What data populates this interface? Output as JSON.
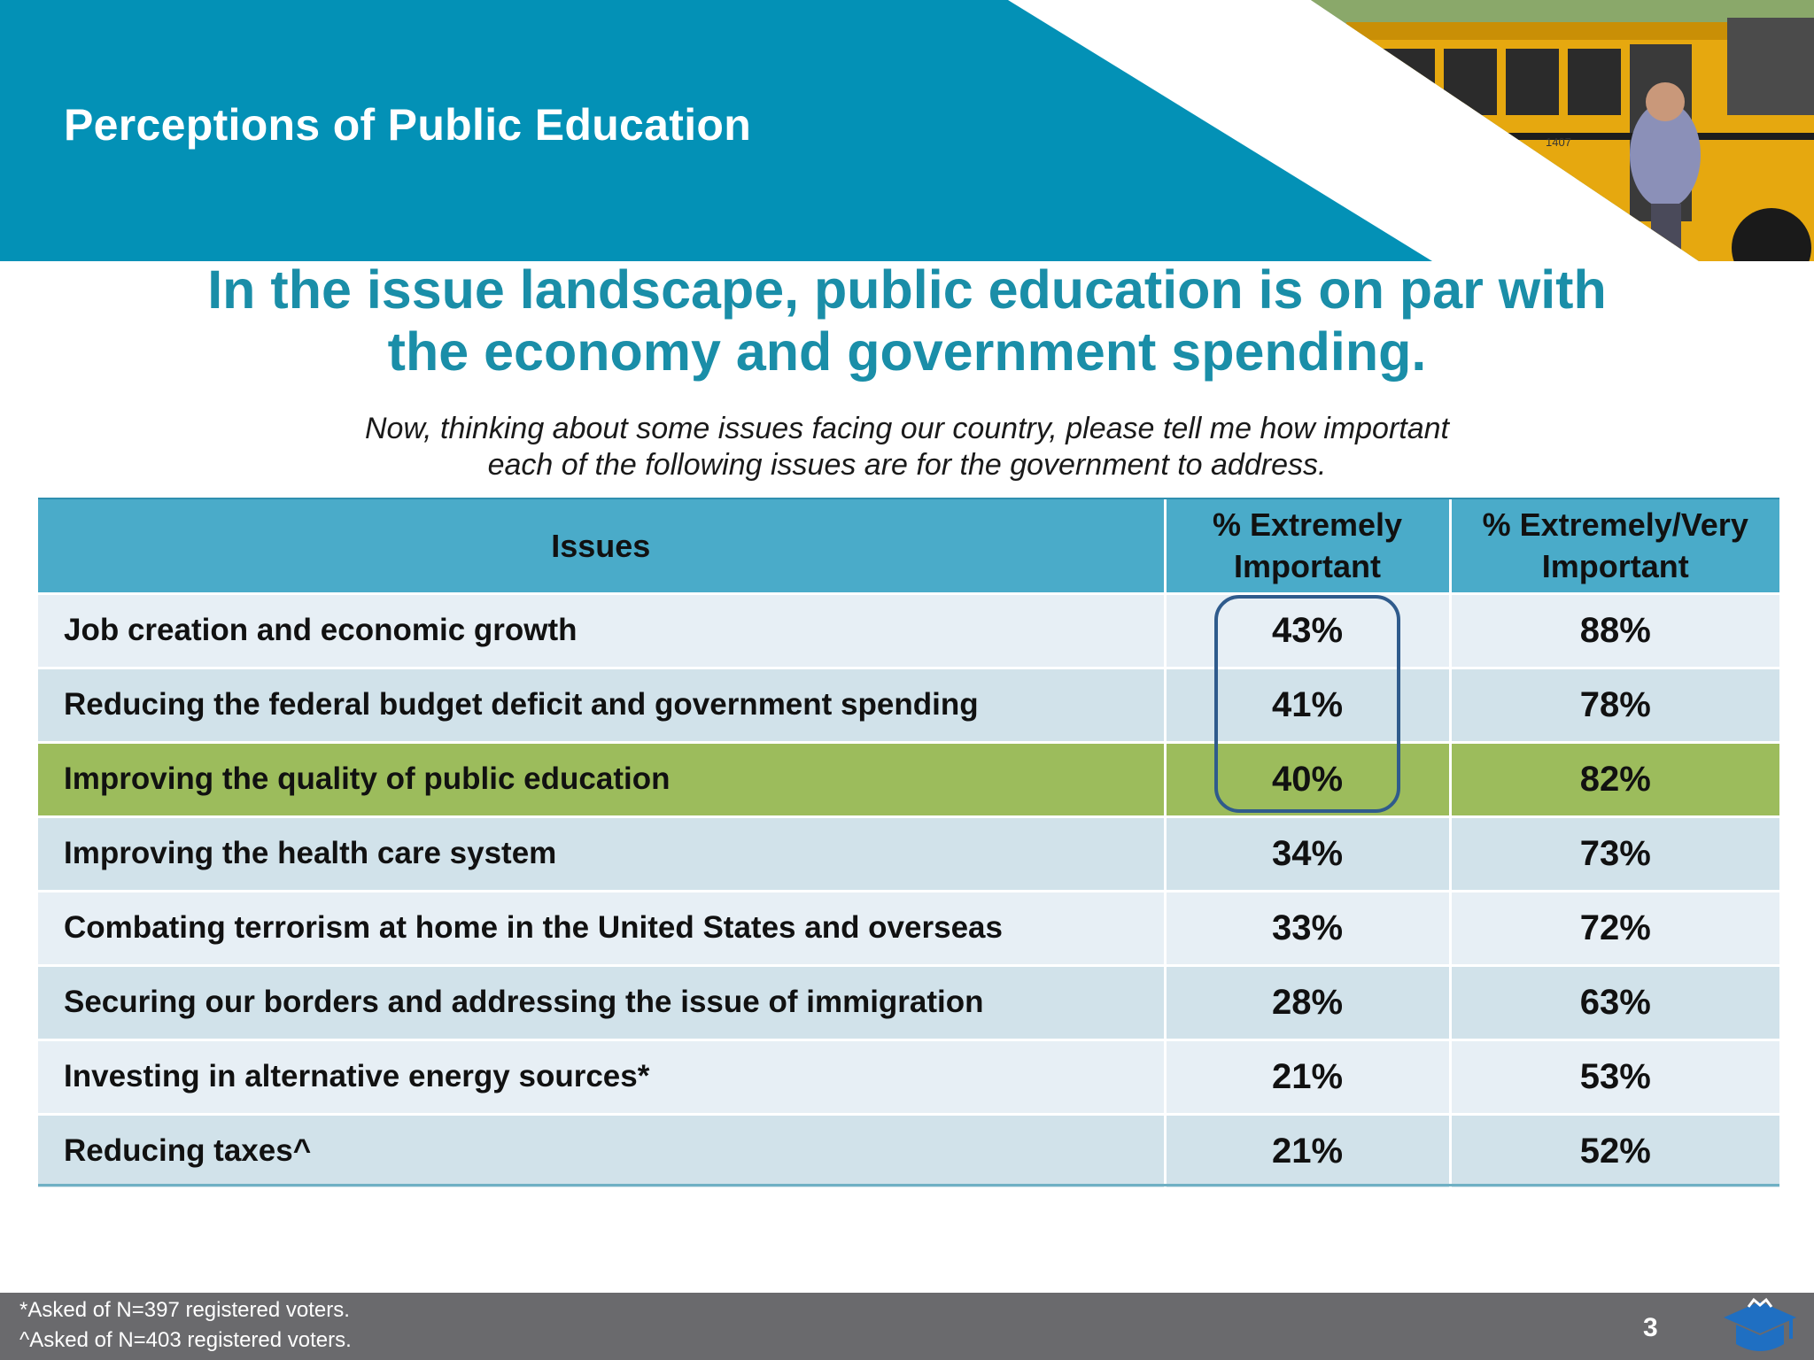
{
  "header": {
    "title": "Perceptions of Public Education"
  },
  "headline": {
    "line1": "In the issue landscape, public education is on par with",
    "line2": "the economy and government spending."
  },
  "question": {
    "line1": "Now, thinking about some issues facing our country, please tell me how important",
    "line2": "each of the following issues are for the government to address."
  },
  "chart_data": {
    "type": "table",
    "columns": {
      "issue": "Issues",
      "extremely_line1": "% Extremely",
      "extremely_line2": "Important",
      "extremely_very_line1": "% Extremely/Very",
      "extremely_very_line2": "Important"
    },
    "rows": [
      {
        "issue": "Job creation and economic growth",
        "extremely": "43%",
        "extremely_very": "88%"
      },
      {
        "issue": "Reducing the federal budget deficit and government spending",
        "extremely": "41%",
        "extremely_very": "78%"
      },
      {
        "issue": "Improving the quality of public education",
        "extremely": "40%",
        "extremely_very": "82%",
        "highlighted": true
      },
      {
        "issue": "Improving the health care system",
        "extremely": "34%",
        "extremely_very": "73%"
      },
      {
        "issue": "Combating terrorism at home in the United States and overseas",
        "extremely": "33%",
        "extremely_very": "72%"
      },
      {
        "issue": "Securing our borders and addressing the issue of immigration",
        "extremely": "28%",
        "extremely_very": "63%"
      },
      {
        "issue": "Investing in alternative energy sources*",
        "extremely": "21%",
        "extremely_very": "53%"
      },
      {
        "issue": "Reducing taxes^",
        "extremely": "21%",
        "extremely_very": "52%"
      }
    ],
    "highlight_color": "#9cbc5c",
    "callout": "top three % Extremely Important values circled"
  },
  "footer": {
    "note1": "*Asked of N=397 registered voters.",
    "note2": "^Asked of N=403 registered voters.",
    "page": "3"
  },
  "colors": {
    "header_teal": "#0391b6",
    "headline_teal": "#1a8ea8",
    "table_header": "#4aabc9",
    "footer_gray": "#6a6a6d",
    "callout_border": "#2f5b8c"
  },
  "icons": {
    "photo": "school-bus-photo",
    "logo": "graduation-cap-logo-icon"
  }
}
